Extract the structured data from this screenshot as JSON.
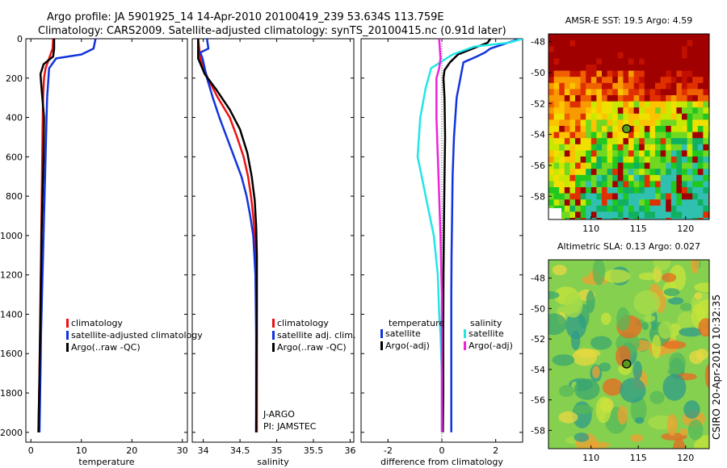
{
  "header": {
    "line1": "Argo profile: JA 5901925_14 14-Apr-2010 20100419_239 53.634S 113.759E",
    "line2": "Climatology: CARS2009. Satellite-adjusted climatology: synTS_20100415.nc (0.91d later)"
  },
  "footer": {
    "credit": "CSIRO 20-Apr-2010 10:32:35"
  },
  "colors": {
    "climatology": "#ee1111",
    "satellite": "#1133dd",
    "argo": "#000000",
    "cyan": "#22e6e6",
    "magenta": "#ee22dd"
  },
  "chart_data": [
    {
      "type": "line",
      "title": "",
      "xlabel": "temperature",
      "ylabel": "",
      "xlim": [
        -1,
        31
      ],
      "ylim": [
        2050,
        0
      ],
      "xticks": [
        "0",
        "10",
        "20",
        "30"
      ],
      "yticks": [
        "0",
        "200",
        "400",
        "600",
        "800",
        "1000",
        "1200",
        "1400",
        "1600",
        "1800",
        "2000"
      ],
      "legend_position": "middle-right",
      "series": [
        {
          "name": "climatology",
          "legend": "climatology",
          "color": "#ee1111",
          "x": [
            4.4,
            4.3,
            3.6,
            2.9,
            2.6,
            2.4,
            2.3,
            2.2,
            2.1,
            2.0,
            1.9,
            1.8,
            1.7,
            1.5
          ],
          "y": [
            0,
            50,
            100,
            150,
            200,
            300,
            500,
            700,
            900,
            1100,
            1300,
            1500,
            1700,
            2000
          ]
        },
        {
          "name": "satellite-adjusted climatology",
          "legend": "satellite-adjusted climatology",
          "color": "#1133dd",
          "x": [
            12.8,
            12.4,
            10.0,
            5.0,
            3.6,
            3.2,
            3.0,
            2.8,
            2.6,
            2.4,
            2.2,
            2.0,
            1.9,
            1.7
          ],
          "y": [
            0,
            50,
            80,
            100,
            150,
            300,
            500,
            700,
            900,
            1100,
            1300,
            1500,
            1700,
            2000
          ]
        },
        {
          "name": "Argo(..raw -QC)",
          "legend": "Argo(..raw -QC)",
          "color": "#000000",
          "x": [
            4.6,
            4.6,
            4.4,
            2.5,
            1.9,
            2.1,
            2.6,
            2.5,
            2.3,
            2.1,
            2.0,
            1.9,
            1.7,
            1.5
          ],
          "y": [
            0,
            50,
            90,
            130,
            180,
            250,
            400,
            600,
            800,
            1000,
            1200,
            1400,
            1700,
            2000
          ]
        }
      ]
    },
    {
      "type": "line",
      "title": "",
      "xlabel": "salinity",
      "ylabel": "",
      "xlim": [
        33.85,
        36.05
      ],
      "ylim": [
        2050,
        0
      ],
      "xticks": [
        "34",
        "34.5",
        "35",
        "35.5",
        "36"
      ],
      "legend_position": "lower-right",
      "annotations": [
        "J-ARGO",
        "PI: JAMSTEC"
      ],
      "series": [
        {
          "name": "climatology",
          "legend": "climatology",
          "color": "#ee1111",
          "x": [
            33.93,
            33.96,
            34.06,
            34.2,
            34.36,
            34.46,
            34.55,
            34.61,
            34.65,
            34.68,
            34.7,
            34.72,
            34.73,
            34.73,
            34.73
          ],
          "y": [
            0,
            100,
            200,
            300,
            400,
            500,
            600,
            700,
            800,
            900,
            1000,
            1200,
            1500,
            1800,
            2000
          ]
        },
        {
          "name": "satellite adj. clim.",
          "legend": "satellite adj. clim.",
          "color": "#1133dd",
          "x": [
            34.05,
            34.07,
            33.96,
            33.99,
            34.05,
            34.13,
            34.22,
            34.32,
            34.42,
            34.52,
            34.59,
            34.64,
            34.68,
            34.71,
            34.72,
            34.72
          ],
          "y": [
            0,
            50,
            70,
            100,
            200,
            300,
            400,
            500,
            600,
            700,
            800,
            900,
            1000,
            1200,
            1500,
            2000
          ]
        },
        {
          "name": "Argo(..raw -QC)",
          "legend": "Argo(..raw -QC)",
          "color": "#000000",
          "x": [
            33.93,
            33.93,
            34.02,
            34.18,
            34.36,
            34.5,
            34.6,
            34.66,
            34.7,
            34.72,
            34.73,
            34.73,
            34.72
          ],
          "y": [
            0,
            100,
            180,
            260,
            360,
            460,
            580,
            700,
            820,
            950,
            1100,
            1400,
            2000
          ]
        }
      ]
    },
    {
      "type": "line",
      "title": "",
      "xlabel": "difference from climatology",
      "ylabel": "",
      "xlim": [
        -3,
        3
      ],
      "ylim": [
        2050,
        0
      ],
      "xticks": [
        "-2",
        "0",
        "2"
      ],
      "legend_position": "lower-center",
      "legend_group_titles": [
        "temperature",
        "salinity"
      ],
      "series": [
        {
          "name": "temperature satellite",
          "legend": "satellite",
          "color": "#1133dd",
          "x": [
            2.9,
            1.8,
            1.6,
            1.3,
            0.8,
            0.55,
            0.45,
            0.4,
            0.38,
            0.36,
            0.35,
            0.35,
            0.35,
            0.35
          ],
          "y": [
            0,
            50,
            70,
            90,
            120,
            300,
            500,
            700,
            900,
            1100,
            1300,
            1500,
            1800,
            2000
          ]
        },
        {
          "name": "temperature Argo(-adj)",
          "legend": "Argo(-adj)",
          "color": "#000000",
          "x": [
            1.8,
            1.7,
            0.6,
            0.3,
            0.1,
            0.06,
            0.1,
            0.12,
            0.1,
            0.08,
            0.06,
            0.05,
            0.05,
            0.04
          ],
          "y": [
            0,
            20,
            80,
            120,
            160,
            200,
            300,
            500,
            700,
            900,
            1200,
            1500,
            1800,
            2000
          ]
        },
        {
          "name": "salinity satellite",
          "legend": "satellite",
          "color": "#22e6e6",
          "x": [
            3.0,
            2.5,
            1.2,
            0.4,
            -0.4,
            -0.6,
            -0.8,
            -0.9,
            -0.6,
            -0.3,
            -0.15,
            -0.1,
            -0.05,
            0.0,
            0.0,
            0.0
          ],
          "y": [
            0,
            20,
            40,
            80,
            150,
            250,
            400,
            600,
            800,
            1000,
            1200,
            1400,
            1500,
            1700,
            1900,
            2000
          ]
        },
        {
          "name": "salinity Argo(-adj)",
          "legend": "Argo(-adj)",
          "color": "#ee22dd",
          "x": [
            -0.1,
            -0.05,
            -0.1,
            -0.2,
            -0.2,
            -0.15,
            -0.1,
            -0.05,
            0.0,
            0.0,
            0.0
          ],
          "y": [
            0,
            100,
            150,
            200,
            400,
            600,
            800,
            1000,
            1300,
            1600,
            2000
          ]
        }
      ]
    },
    {
      "type": "heatmap",
      "title": "AMSR-E SST: 19.5 Argo: 4.59",
      "xlabel": "",
      "ylabel": "",
      "xlim": [
        105.5,
        122.5
      ],
      "ylim": [
        -59.5,
        -47.5
      ],
      "xticks": [
        "110",
        "115",
        "120"
      ],
      "yticks": [
        "-48",
        "-50",
        "-52",
        "-54",
        "-56",
        "-58"
      ],
      "marker": {
        "lon": 113.759,
        "lat": -53.634
      }
    },
    {
      "type": "heatmap",
      "title": "Altimetric SLA: 0.13 Argo: 0.027",
      "xlabel": "",
      "ylabel": "",
      "xlim": [
        105.5,
        122.5
      ],
      "ylim": [
        -59.2,
        -46.8
      ],
      "xticks": [
        "110",
        "115",
        "120"
      ],
      "yticks": [
        "-48",
        "-50",
        "-52",
        "-54",
        "-56",
        "-58"
      ],
      "marker": {
        "lon": 113.759,
        "lat": -53.634
      }
    }
  ]
}
